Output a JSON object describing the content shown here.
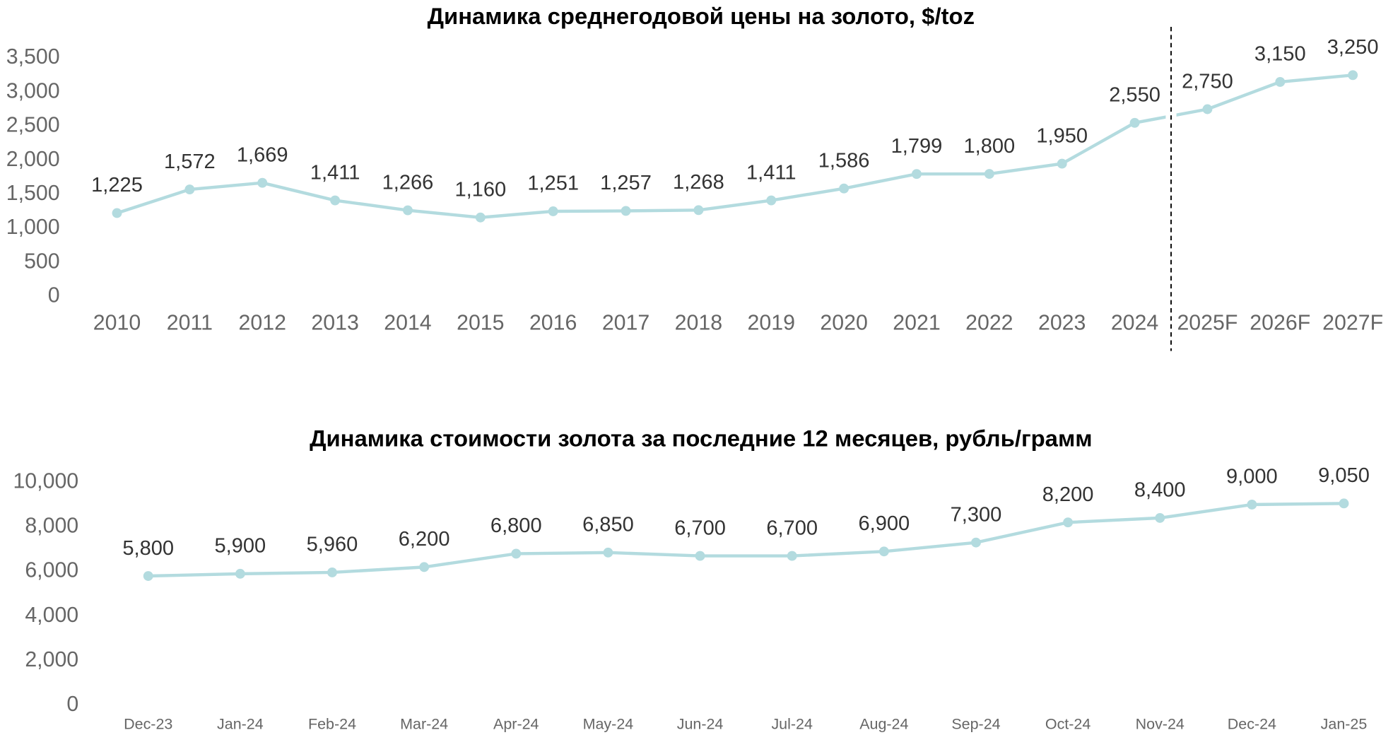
{
  "chart_data": [
    {
      "type": "line",
      "title": "Динамика среднегодовой цены на золото, $/toz",
      "categories": [
        "2010",
        "2011",
        "2012",
        "2013",
        "2014",
        "2015",
        "2016",
        "2017",
        "2018",
        "2019",
        "2020",
        "2021",
        "2022",
        "2023",
        "2024",
        "2025F",
        "2026F",
        "2027F"
      ],
      "series": [
        {
          "color": "#b3dbdf",
          "values": [
            1225,
            1572,
            1669,
            1411,
            1266,
            1160,
            1251,
            1257,
            1268,
            1411,
            1586,
            1799,
            1800,
            1950,
            2550,
            2750,
            3150,
            3250
          ],
          "value_labels": [
            "1,225",
            "1,572",
            "1,669",
            "1,411",
            "1,266",
            "1,160",
            "1,251",
            "1,257",
            "1,268",
            "1,411",
            "1,586",
            "1,799",
            "1,800",
            "1,950",
            "2,550",
            "2,750",
            "3,150",
            "3,250"
          ]
        }
      ],
      "ylim": [
        0,
        3500
      ],
      "yticks": [
        0,
        500,
        {
          "value": 1000,
          "label": "1,000"
        },
        {
          "value": 1500,
          "label": "1,500"
        },
        {
          "value": 2000,
          "label": "2,000"
        },
        {
          "value": 2500,
          "label": "2,500"
        },
        {
          "value": 3000,
          "label": "3,000"
        },
        {
          "value": 3500,
          "label": "3,500"
        }
      ]
    },
    {
      "type": "line",
      "title": "Динамика стоимости золота за последние 12 месяцев, рубль/грамм",
      "categories": [
        "Dec-23",
        "Jan-24",
        "Feb-24",
        "Mar-24",
        "Apr-24",
        "May-24",
        "Jun-24",
        "Jul-24",
        "Aug-24",
        "Sep-24",
        "Oct-24",
        "Nov-24",
        "Dec-24",
        "Jan-25"
      ],
      "series": [
        {
          "color": "#b3dbdf",
          "values": [
            5800,
            5900,
            5960,
            6200,
            6800,
            6850,
            6700,
            6700,
            6900,
            7300,
            8200,
            8400,
            9000,
            9050
          ],
          "value_labels": [
            "5,800",
            "5,900",
            "5,960",
            "6,200",
            "6,800",
            "6,850",
            "6,700",
            "6,700",
            "6,900",
            "7,300",
            "8,200",
            "8,400",
            "9,000",
            "9,050"
          ]
        }
      ],
      "ylim": [
        0,
        10000
      ],
      "yticks": [
        0,
        {
          "value": 2000,
          "label": "2,000"
        },
        {
          "value": 4000,
          "label": "4,000"
        },
        {
          "value": 6000,
          "label": "6,000"
        },
        {
          "value": 8000,
          "label": "8,000"
        },
        {
          "value": 10000,
          "label": "10,000"
        }
      ]
    }
  ]
}
